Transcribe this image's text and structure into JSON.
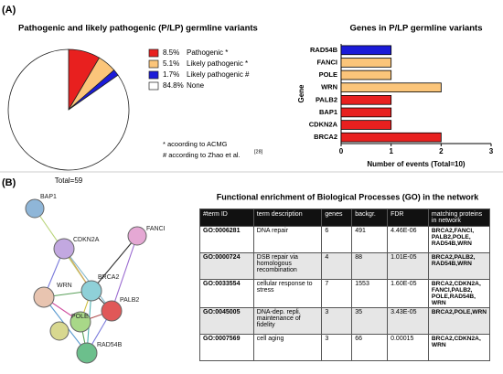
{
  "panel_a_label": "(A)",
  "panel_b_label": "(B)",
  "chart_data": [
    {
      "type": "pie",
      "title": "Pathogenic and likely pathogenic (P/LP) germline variants",
      "categories": [
        "Pathogenic *",
        "Likely pathogenic *",
        "Likely pathogenic #",
        "None"
      ],
      "values": [
        8.5,
        5.1,
        1.7,
        84.8
      ],
      "value_labels": [
        "8.5%",
        "5.1%",
        "1.7%",
        "84.8%"
      ],
      "colors": [
        "#e8201f",
        "#fbc57a",
        "#1b1bd8",
        "#ffffff"
      ],
      "total_label": "Total=59",
      "notes": [
        "* acoording to ACMG",
        "# according to Zhao et al."
      ],
      "note_ref": "[28]"
    },
    {
      "type": "hbar",
      "title": "Genes in P/LP germline variants",
      "categories": [
        "RAD54B",
        "FANCI",
        "POLE",
        "WRN",
        "PALB2",
        "BAP1",
        "CDKN2A",
        "BRCA2"
      ],
      "values": [
        1,
        1,
        1,
        2,
        1,
        1,
        1,
        2
      ],
      "colors": [
        "#1b1bd8",
        "#fbc57a",
        "#fbc57a",
        "#fbc57a",
        "#e8201f",
        "#e8201f",
        "#e8201f",
        "#e8201f"
      ],
      "xlim": [
        0,
        3
      ],
      "xticks": [
        0,
        1,
        2,
        3
      ],
      "xlabel": "Number of events (Total=10)",
      "ylabel": "Gene"
    }
  ],
  "network": {
    "nodes": [
      "BAP1",
      "CDKN2A",
      "FANCI",
      "BRCA2",
      "WRN",
      "PALB2",
      "POLE",
      "RAD54B"
    ]
  },
  "table": {
    "title": "Functional enrichment of Biological Processes (GO) in the network",
    "header": [
      "#term ID",
      "term description",
      "genes",
      "backgr.",
      "FDR",
      "matching proteins in network"
    ],
    "rows": [
      [
        "GO:0006281",
        "DNA repair",
        "6",
        "491",
        "4.46E-06",
        "BRCA2,FANCI, PALB2,POLE, RAD54B,WRN"
      ],
      [
        "GO:0000724",
        "DSB repair via homologous recombination",
        "4",
        "88",
        "1.01E-05",
        "BRCA2,PALB2, RAD54B,WRN"
      ],
      [
        "GO:0033554",
        "cellular response to stress",
        "7",
        "1553",
        "1.60E-05",
        "BRCA2,CDKN2A, FANCI,PALB2, POLE,RAD54B, WRN"
      ],
      [
        "GO:0045005",
        "DNA-dep. repli. maintenance of fidelity",
        "3",
        "35",
        "3.43E-05",
        "BRCA2,POLE,WRN"
      ],
      [
        "GO:0007569",
        "cell aging",
        "3",
        "66",
        "0.00015",
        "BRCA2,CDKN2A, WRN"
      ]
    ]
  }
}
